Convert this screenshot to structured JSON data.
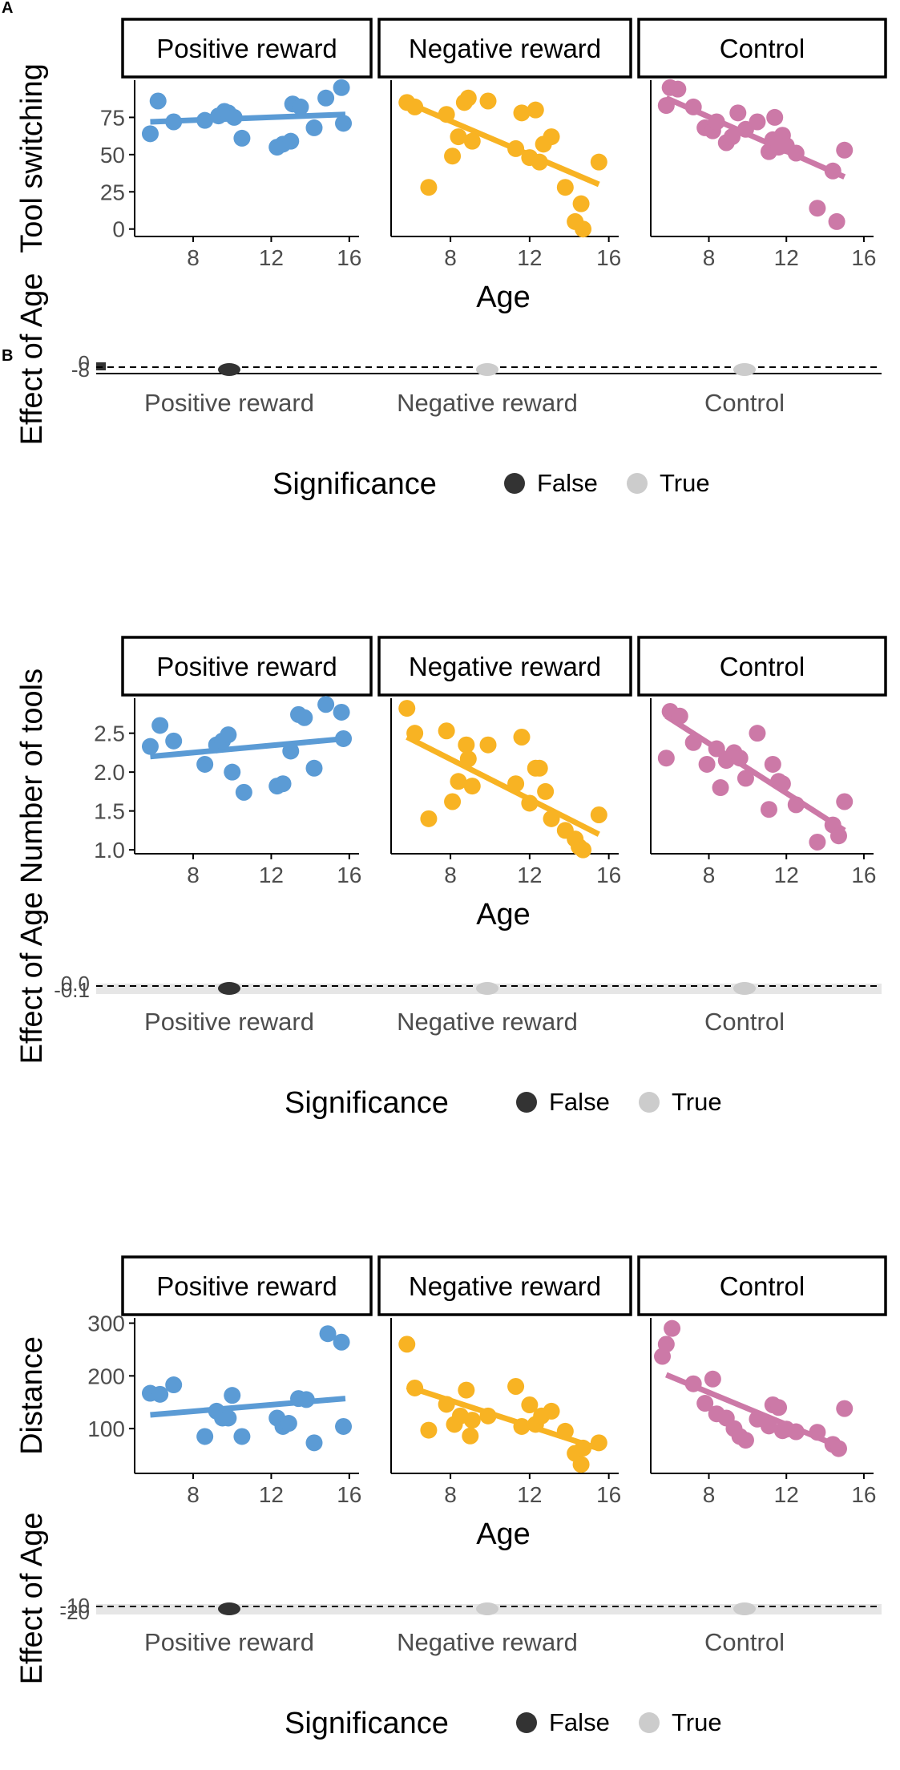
{
  "panel_labels": {
    "a": "A",
    "b": "B"
  },
  "colors": {
    "positive": "#5B9BD5",
    "negative": "#F8B323",
    "control": "#CC79A7",
    "sig_false": "#333333",
    "sig_true": "#CCCCCC"
  },
  "legend": {
    "title": "Significance",
    "false_label": "False",
    "true_label": "True"
  },
  "chart_data": [
    {
      "type": "scatter",
      "ylabel": "Tool switching",
      "xlabel": "Age",
      "xlim": [
        5,
        16.5
      ],
      "ylim": [
        -5,
        100
      ],
      "xticks": [
        8,
        12,
        16
      ],
      "yticks": [
        0,
        25,
        50,
        75
      ],
      "facets": [
        {
          "name": "Positive reward",
          "color": "#5B9BD5",
          "points": [
            [
              5.8,
              64
            ],
            [
              6.2,
              86
            ],
            [
              7.0,
              72
            ],
            [
              8.6,
              73
            ],
            [
              9.3,
              76
            ],
            [
              9.6,
              79
            ],
            [
              9.8,
              78
            ],
            [
              10.1,
              75
            ],
            [
              10.5,
              61
            ],
            [
              12.3,
              55
            ],
            [
              12.6,
              57
            ],
            [
              13.0,
              59
            ],
            [
              13.1,
              84
            ],
            [
              13.5,
              82
            ],
            [
              14.2,
              68
            ],
            [
              14.8,
              88
            ],
            [
              15.6,
              95
            ],
            [
              15.7,
              71
            ]
          ],
          "fit": [
            [
              5.8,
              72
            ],
            [
              15.8,
              77
            ]
          ]
        },
        {
          "name": "Negative reward",
          "color": "#F8B323",
          "points": [
            [
              5.8,
              85
            ],
            [
              6.2,
              82
            ],
            [
              6.9,
              28
            ],
            [
              7.8,
              77
            ],
            [
              8.1,
              49
            ],
            [
              8.4,
              62
            ],
            [
              8.7,
              85
            ],
            [
              8.9,
              88
            ],
            [
              9.1,
              59
            ],
            [
              9.9,
              86
            ],
            [
              11.3,
              54
            ],
            [
              11.6,
              78
            ],
            [
              12.0,
              48
            ],
            [
              12.3,
              80
            ],
            [
              12.5,
              45
            ],
            [
              12.7,
              57
            ],
            [
              13.1,
              62
            ],
            [
              13.8,
              28
            ],
            [
              14.3,
              5
            ],
            [
              14.6,
              17
            ],
            [
              14.7,
              0
            ],
            [
              15.5,
              45
            ]
          ],
          "fit": [
            [
              5.8,
              85
            ],
            [
              15.5,
              30
            ]
          ]
        },
        {
          "name": "Control",
          "color": "#CC79A7",
          "points": [
            [
              5.8,
              83
            ],
            [
              6.0,
              95
            ],
            [
              6.4,
              94
            ],
            [
              7.2,
              82
            ],
            [
              7.8,
              68
            ],
            [
              8.2,
              66
            ],
            [
              8.4,
              72
            ],
            [
              8.9,
              58
            ],
            [
              9.2,
              62
            ],
            [
              9.5,
              78
            ],
            [
              9.9,
              67
            ],
            [
              10.5,
              72
            ],
            [
              11.1,
              52
            ],
            [
              11.3,
              60
            ],
            [
              11.4,
              75
            ],
            [
              11.6,
              55
            ],
            [
              11.8,
              63
            ],
            [
              12.0,
              56
            ],
            [
              12.5,
              51
            ],
            [
              13.6,
              14
            ],
            [
              14.4,
              39
            ],
            [
              14.6,
              5
            ],
            [
              15.0,
              53
            ]
          ],
          "fit": [
            [
              5.8,
              88
            ],
            [
              15.0,
              35
            ]
          ]
        }
      ],
      "effect": {
        "ylabel": "Effect of Age",
        "tick_labels": [
          "0",
          "-8"
        ],
        "categories": [
          "Positive reward",
          "Negative reward",
          "Control"
        ],
        "significant": [
          false,
          true,
          true
        ]
      }
    },
    {
      "type": "scatter",
      "ylabel": "Number of tools",
      "xlabel": "Age",
      "xlim": [
        5,
        16.5
      ],
      "ylim": [
        0.95,
        2.95
      ],
      "xticks": [
        8,
        12,
        16
      ],
      "yticks": [
        1.0,
        1.5,
        2.0,
        2.5
      ],
      "ytick_labels": [
        "1.0",
        "1.5",
        "2.0",
        "2.5"
      ],
      "facets": [
        {
          "name": "Positive reward",
          "color": "#5B9BD5",
          "points": [
            [
              5.8,
              2.33
            ],
            [
              6.3,
              2.6
            ],
            [
              7.0,
              2.4
            ],
            [
              8.6,
              2.1
            ],
            [
              9.2,
              2.35
            ],
            [
              9.5,
              2.4
            ],
            [
              9.8,
              2.48
            ],
            [
              10.0,
              2.0
            ],
            [
              10.6,
              1.74
            ],
            [
              12.3,
              1.82
            ],
            [
              12.6,
              1.85
            ],
            [
              13.0,
              2.27
            ],
            [
              13.4,
              2.74
            ],
            [
              13.7,
              2.7
            ],
            [
              14.2,
              2.05
            ],
            [
              14.8,
              2.87
            ],
            [
              15.6,
              2.77
            ],
            [
              15.7,
              2.43
            ]
          ],
          "fit": [
            [
              5.8,
              2.2
            ],
            [
              15.8,
              2.43
            ]
          ]
        },
        {
          "name": "Negative reward",
          "color": "#F8B323",
          "points": [
            [
              5.8,
              2.82
            ],
            [
              6.2,
              2.5
            ],
            [
              6.9,
              1.4
            ],
            [
              7.8,
              2.53
            ],
            [
              8.1,
              1.62
            ],
            [
              8.4,
              1.88
            ],
            [
              8.8,
              2.35
            ],
            [
              8.9,
              2.17
            ],
            [
              9.1,
              1.82
            ],
            [
              9.9,
              2.35
            ],
            [
              11.3,
              1.85
            ],
            [
              11.6,
              2.45
            ],
            [
              12.0,
              1.6
            ],
            [
              12.3,
              2.05
            ],
            [
              12.5,
              2.05
            ],
            [
              12.8,
              1.75
            ],
            [
              13.1,
              1.4
            ],
            [
              13.8,
              1.25
            ],
            [
              14.3,
              1.14
            ],
            [
              14.5,
              1.04
            ],
            [
              14.7,
              1.0
            ],
            [
              15.5,
              1.45
            ]
          ],
          "fit": [
            [
              5.8,
              2.45
            ],
            [
              15.5,
              1.2
            ]
          ]
        },
        {
          "name": "Control",
          "color": "#CC79A7",
          "points": [
            [
              5.8,
              2.18
            ],
            [
              6.0,
              2.78
            ],
            [
              6.5,
              2.72
            ],
            [
              7.2,
              2.38
            ],
            [
              7.9,
              2.1
            ],
            [
              8.4,
              2.3
            ],
            [
              8.6,
              1.8
            ],
            [
              8.9,
              2.15
            ],
            [
              9.3,
              2.25
            ],
            [
              9.6,
              2.18
            ],
            [
              9.9,
              1.92
            ],
            [
              10.5,
              2.5
            ],
            [
              11.1,
              1.52
            ],
            [
              11.3,
              2.1
            ],
            [
              11.6,
              1.88
            ],
            [
              11.8,
              1.85
            ],
            [
              12.5,
              1.58
            ],
            [
              13.6,
              1.1
            ],
            [
              14.4,
              1.32
            ],
            [
              14.7,
              1.18
            ],
            [
              15.0,
              1.62
            ]
          ],
          "fit": [
            [
              5.8,
              2.72
            ],
            [
              15.0,
              1.25
            ]
          ]
        }
      ],
      "effect": {
        "ylabel": "Effect of Age",
        "tick_labels": [
          "0.0",
          "-0.1"
        ],
        "categories": [
          "Positive reward",
          "Negative reward",
          "Control"
        ],
        "significant": [
          false,
          true,
          true
        ]
      }
    },
    {
      "type": "scatter",
      "ylabel": "Distance",
      "xlabel": "Age",
      "xlim": [
        5,
        16.5
      ],
      "ylim": [
        15,
        310
      ],
      "xticks": [
        8,
        12,
        16
      ],
      "yticks": [
        100,
        200,
        300
      ],
      "facets": [
        {
          "name": "Positive reward",
          "color": "#5B9BD5",
          "points": [
            [
              5.8,
              167
            ],
            [
              6.3,
              165
            ],
            [
              7.0,
              183
            ],
            [
              8.6,
              85
            ],
            [
              9.2,
              133
            ],
            [
              9.5,
              120
            ],
            [
              9.8,
              120
            ],
            [
              10.0,
              163
            ],
            [
              10.5,
              85
            ],
            [
              12.3,
              120
            ],
            [
              12.6,
              104
            ],
            [
              12.9,
              110
            ],
            [
              13.4,
              157
            ],
            [
              13.8,
              155
            ],
            [
              14.2,
              73
            ],
            [
              14.9,
              280
            ],
            [
              15.6,
              264
            ],
            [
              15.7,
              104
            ]
          ],
          "fit": [
            [
              5.8,
              126
            ],
            [
              15.8,
              157
            ]
          ]
        },
        {
          "name": "Negative reward",
          "color": "#F8B323",
          "points": [
            [
              5.8,
              260
            ],
            [
              6.2,
              177
            ],
            [
              6.9,
              97
            ],
            [
              7.8,
              146
            ],
            [
              8.2,
              108
            ],
            [
              8.5,
              124
            ],
            [
              8.8,
              173
            ],
            [
              9.0,
              86
            ],
            [
              9.1,
              116
            ],
            [
              9.9,
              124
            ],
            [
              11.3,
              180
            ],
            [
              11.6,
              104
            ],
            [
              12.0,
              145
            ],
            [
              12.3,
              108
            ],
            [
              12.6,
              124
            ],
            [
              13.1,
              133
            ],
            [
              13.8,
              95
            ],
            [
              14.3,
              53
            ],
            [
              14.6,
              32
            ],
            [
              14.7,
              63
            ],
            [
              15.5,
              73
            ]
          ],
          "fit": [
            [
              5.8,
              180
            ],
            [
              15.5,
              62
            ]
          ]
        },
        {
          "name": "Control",
          "color": "#CC79A7",
          "points": [
            [
              5.6,
              237
            ],
            [
              5.8,
              260
            ],
            [
              6.1,
              290
            ],
            [
              7.2,
              185
            ],
            [
              7.8,
              148
            ],
            [
              8.2,
              194
            ],
            [
              8.4,
              128
            ],
            [
              8.9,
              120
            ],
            [
              9.3,
              100
            ],
            [
              9.6,
              85
            ],
            [
              9.9,
              78
            ],
            [
              10.5,
              118
            ],
            [
              11.1,
              105
            ],
            [
              11.3,
              145
            ],
            [
              11.6,
              140
            ],
            [
              11.8,
              96
            ],
            [
              12.0,
              99
            ],
            [
              12.5,
              94
            ],
            [
              13.6,
              93
            ],
            [
              14.4,
              70
            ],
            [
              14.7,
              62
            ],
            [
              15.0,
              138
            ]
          ],
          "fit": [
            [
              5.8,
              202
            ],
            [
              15.0,
              62
            ]
          ]
        }
      ],
      "effect": {
        "ylabel": "Effect of Age",
        "tick_labels": [
          "-10",
          "-20"
        ],
        "categories": [
          "Positive reward",
          "Negative reward",
          "Control"
        ],
        "significant": [
          false,
          true,
          true
        ]
      }
    }
  ]
}
